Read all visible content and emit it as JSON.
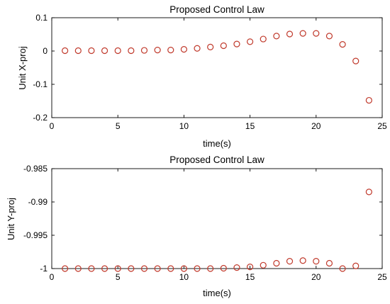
{
  "chart_data": [
    {
      "type": "scatter",
      "title": "Proposed Control Law",
      "xlabel": "time(s)",
      "ylabel": "Unit X-proj",
      "xlim": [
        0,
        25
      ],
      "ylim": [
        -0.2,
        0.1
      ],
      "xticks": [
        0,
        5,
        10,
        15,
        20,
        25
      ],
      "xtick_labels": [
        "0",
        "5",
        "10",
        "15",
        "20",
        "25"
      ],
      "yticks": [
        -0.2,
        -0.1,
        0,
        0.1
      ],
      "ytick_labels": [
        "-0.2",
        "-0.1",
        "0",
        "0.1"
      ],
      "grid": false,
      "marker": "open-circle",
      "marker_color": "#c0392b",
      "series": [
        {
          "x": [
            1,
            2,
            3,
            4,
            5,
            6,
            7,
            8,
            9,
            10,
            11,
            12,
            13,
            14,
            15,
            16,
            17,
            18,
            19,
            20,
            21,
            22,
            23,
            24
          ],
          "y": [
            0.001,
            0.001,
            0.001,
            0.001,
            0.001,
            0.001,
            0.002,
            0.003,
            0.003,
            0.005,
            0.008,
            0.012,
            0.016,
            0.021,
            0.028,
            0.036,
            0.045,
            0.051,
            0.053,
            0.053,
            0.045,
            0.02,
            -0.03,
            -0.148
          ]
        }
      ]
    },
    {
      "type": "scatter",
      "title": "Proposed Control Law",
      "xlabel": "time(s)",
      "ylabel": "Unit Y-proj",
      "xlim": [
        0,
        25
      ],
      "ylim": [
        -1,
        -0.985
      ],
      "xticks": [
        0,
        5,
        10,
        15,
        20,
        25
      ],
      "xtick_labels": [
        "0",
        "5",
        "10",
        "15",
        "20",
        "25"
      ],
      "yticks": [
        -1,
        -0.995,
        -0.99,
        -0.985
      ],
      "ytick_labels": [
        "-1",
        "-0.995",
        "-0.99",
        "-0.985"
      ],
      "grid": false,
      "marker": "open-circle",
      "marker_color": "#c0392b",
      "series": [
        {
          "x": [
            1,
            2,
            3,
            4,
            5,
            6,
            7,
            8,
            9,
            10,
            11,
            12,
            13,
            14,
            15,
            16,
            17,
            18,
            19,
            20,
            21,
            22,
            23,
            24
          ],
          "y": [
            -1.0,
            -1.0,
            -1.0,
            -1.0,
            -1.0,
            -1.0,
            -1.0,
            -1.0,
            -1.0,
            -1.0,
            -1.0,
            -1.0,
            -0.99995,
            -0.99985,
            -0.99975,
            -0.9995,
            -0.9992,
            -0.9989,
            -0.9988,
            -0.9989,
            -0.9992,
            -1.0,
            -0.9996,
            -0.9885
          ]
        }
      ]
    }
  ]
}
